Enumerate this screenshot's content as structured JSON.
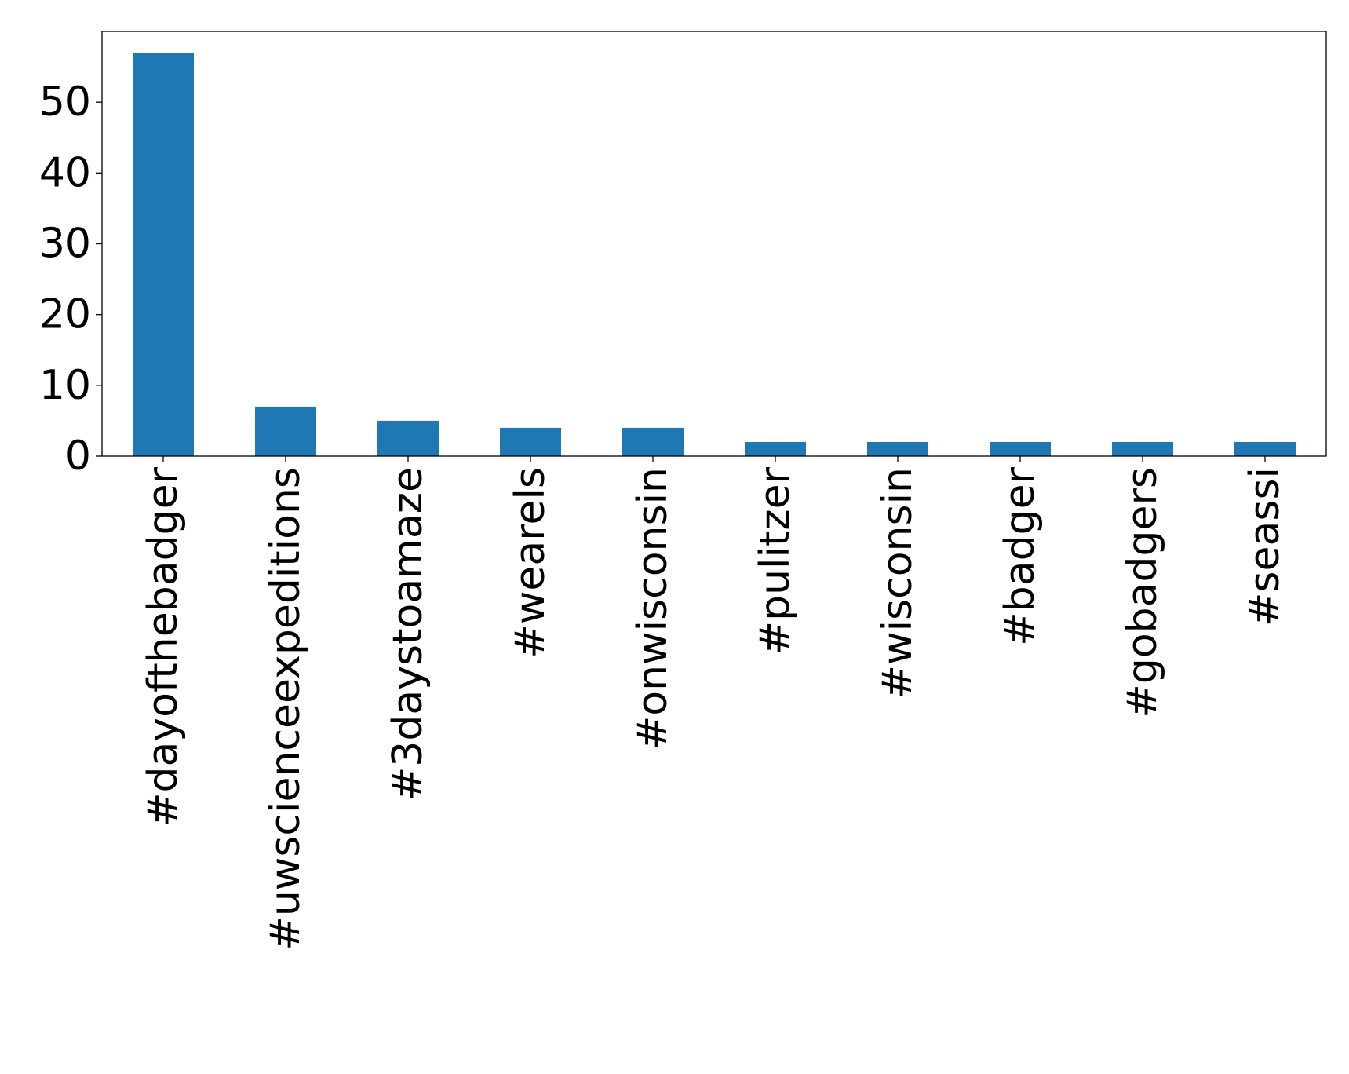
{
  "chart_data": {
    "type": "bar",
    "title": "",
    "xlabel": "",
    "ylabel": "",
    "categories": [
      "#dayofthebadger",
      "#uwscienceexpeditions",
      "#3daystoamaze",
      "#wearels",
      "#onwisconsin",
      "#pulitzer",
      "#wisconsin",
      "#badger",
      "#gobadgers",
      "#seassi"
    ],
    "values": [
      57,
      7,
      5,
      4,
      4,
      2,
      2,
      2,
      2,
      2
    ],
    "ylim": [
      0,
      60
    ],
    "yticks": [
      0,
      10,
      20,
      30,
      40,
      50
    ],
    "grid": false,
    "legend": "none",
    "bar_color": "#1f77b4"
  }
}
